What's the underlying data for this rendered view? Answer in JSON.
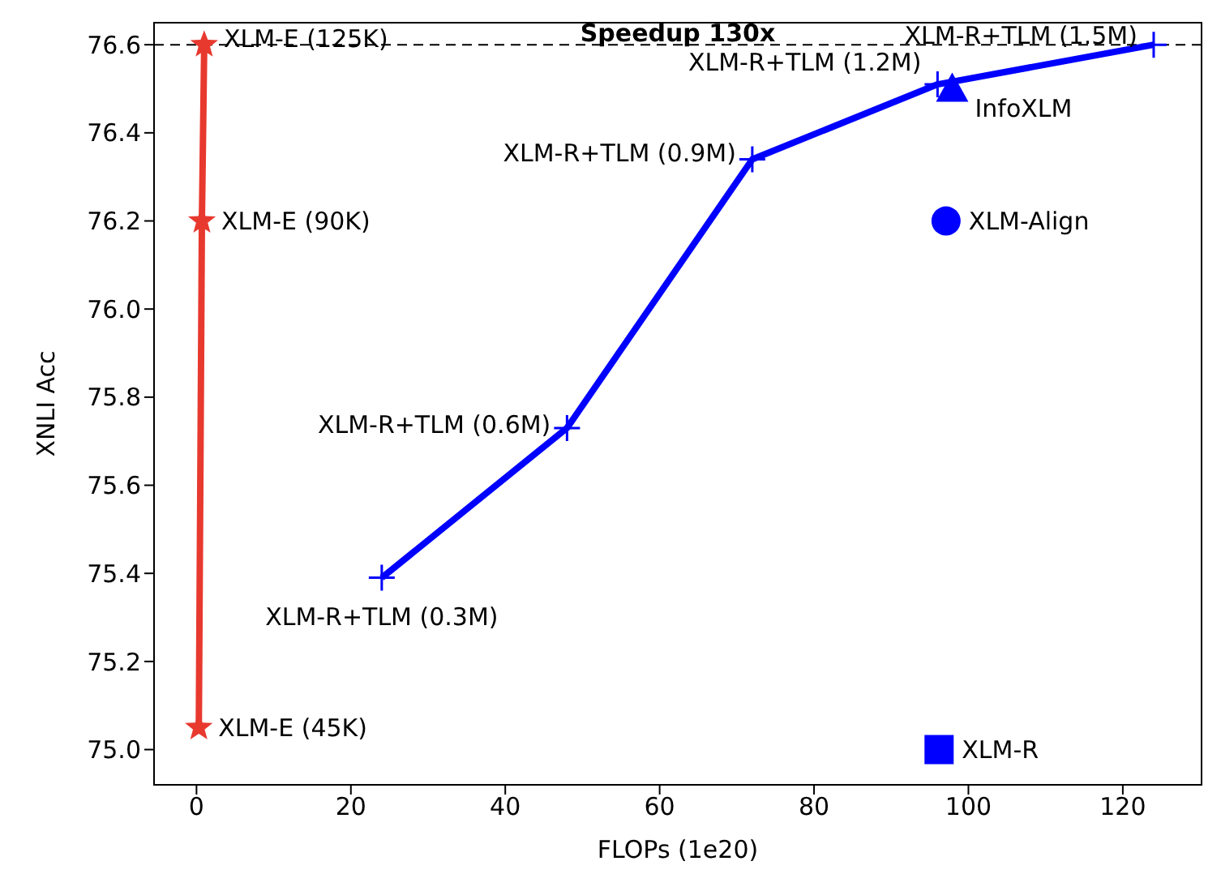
{
  "chart_data": {
    "type": "line",
    "xlabel": "FLOPs (1e20)",
    "ylabel": "XNLI Acc",
    "xlim": [
      -5.5,
      130.2
    ],
    "xticks": [
      0,
      20,
      40,
      60,
      80,
      100,
      120
    ],
    "ylim": [
      74.92,
      76.65
    ],
    "yticks": [
      {
        "value": 75,
        "label": "75.0"
      },
      75.2,
      75.4,
      75.6,
      75.8,
      {
        "value": 76,
        "label": "76.0"
      },
      76.2,
      76.4,
      76.6
    ],
    "series": [
      {
        "color": "#e8392f",
        "marker": "star",
        "x": [
          0.3,
          0.7,
          1.0
        ],
        "values": [
          75.05,
          76.2,
          76.6
        ]
      },
      {
        "color": "#0000ff",
        "marker": "cross",
        "x": [
          24,
          48,
          72,
          96,
          124
        ],
        "values": [
          75.39,
          75.73,
          76.34,
          76.51,
          76.6
        ]
      },
      {
        "type": "scatter",
        "color": "#0000ff",
        "marker": "triangle",
        "x": [
          97.9
        ],
        "values": [
          76.5
        ]
      },
      {
        "type": "scatter",
        "color": "#0000ff",
        "marker": "circle",
        "x": [
          97.1
        ],
        "values": [
          76.2
        ]
      },
      {
        "type": "scatter",
        "color": "#0000ff",
        "marker": "square",
        "x": [
          96.2
        ],
        "values": [
          75.0
        ]
      }
    ],
    "ref_lines": [
      {
        "axis": "y",
        "value": 76.6,
        "label": "Speedup 130x",
        "line_style": "dashed",
        "color": "#000000"
      }
    ],
    "annotations": [
      {
        "text": "XLM-E (45K)",
        "x": 0.3,
        "y": 75.05
      },
      {
        "text": "XLM-E (90K)",
        "x": 0.7,
        "y": 76.2
      },
      {
        "text": "XLM-E (125K)",
        "x": 1.0,
        "y": 76.6
      },
      {
        "text": "XLM-R+TLM (0.3M)",
        "x": 24,
        "y": 75.39
      },
      {
        "text": "XLM-R+TLM (0.6M)",
        "x": 48,
        "y": 75.73
      },
      {
        "text": "XLM-R+TLM (0.9M)",
        "x": 72,
        "y": 76.34
      },
      {
        "text": "XLM-R+TLM (1.2M)",
        "x": 96,
        "y": 76.51
      },
      {
        "text": "XLM-R+TLM (1.5M)",
        "x": 124,
        "y": 76.6
      },
      {
        "text": "InfoXLM",
        "x": 97.9,
        "y": 76.5
      },
      {
        "text": "XLM-Align",
        "x": 97.1,
        "y": 76.2
      },
      {
        "text": "XLM-R",
        "x": 96.2,
        "y": 75.0
      }
    ]
  }
}
